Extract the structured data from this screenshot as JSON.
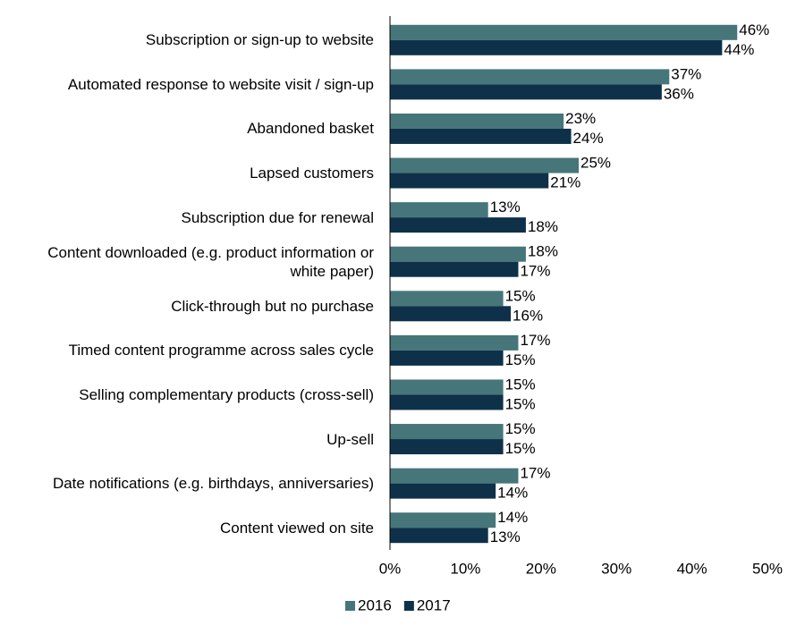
{
  "chart_data": {
    "type": "hbar",
    "categories": [
      "Subscription or sign-up to website",
      "Automated response to website visit / sign-up",
      "Abandoned basket",
      "Lapsed customers",
      "Subscription due for renewal",
      "Content downloaded (e.g. product information or white paper)",
      "Click-through but no purchase",
      "Timed content programme across sales cycle",
      "Selling complementary products (cross-sell)",
      "Up-sell",
      "Date notifications (e.g. birthdays, anniversaries)",
      "Content viewed on site"
    ],
    "series": [
      {
        "name": "2016",
        "color": "#467679",
        "values": [
          46,
          37,
          23,
          25,
          13,
          18,
          15,
          17,
          15,
          15,
          17,
          14
        ],
        "value_labels": [
          "46%",
          "37%",
          "23%",
          "25%",
          "13%",
          "18%",
          "15%",
          "17%",
          "15%",
          "15%",
          "17%",
          "14%"
        ]
      },
      {
        "name": "2017",
        "color": "#0e3149",
        "values": [
          44,
          36,
          24,
          21,
          18,
          17,
          16,
          15,
          15,
          15,
          14,
          13
        ],
        "value_labels": [
          "44%",
          "36%",
          "24%",
          "21%",
          "18%",
          "17%",
          "16%",
          "15%",
          "15%",
          "15%",
          "14%",
          "13%"
        ]
      }
    ],
    "xlim": [
      0,
      50
    ],
    "xticks": [
      {
        "value": 0,
        "label": "0%"
      },
      {
        "value": 10,
        "label": "10%"
      },
      {
        "value": 20,
        "label": "20%"
      },
      {
        "value": 30,
        "label": "30%"
      },
      {
        "value": 40,
        "label": "40%"
      },
      {
        "value": 50,
        "label": "50%"
      }
    ],
    "legend": "bottom"
  }
}
